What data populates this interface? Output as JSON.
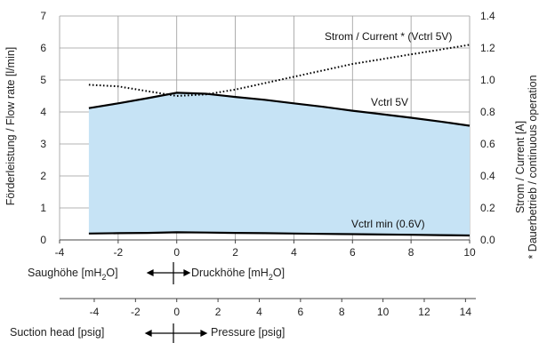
{
  "chart_data": {
    "type": "area",
    "x": [
      -3,
      -2,
      -1,
      0,
      1,
      2,
      3,
      4,
      5,
      6,
      7,
      8,
      9,
      10
    ],
    "xlim": [
      -4,
      10
    ],
    "x_ticks": [
      -4,
      -2,
      0,
      2,
      4,
      6,
      8,
      10
    ],
    "ylim": [
      0,
      7
    ],
    "y_ticks": [
      0,
      1,
      2,
      3,
      4,
      5,
      6,
      7
    ],
    "y2lim": [
      0,
      1.4
    ],
    "y2_ticks": [
      "0.0",
      "0.2",
      "0.4",
      "0.6",
      "0.8",
      "1.0",
      "1.2",
      "1.4"
    ],
    "ylabel": "Förderleistung / Flow rate [l/min]",
    "y2label_line1": "Strom / Current [A]",
    "y2label_line2": "* Dauerbetrieb / continuous operation",
    "grid": true,
    "series": [
      {
        "name": "Vctrl 5V",
        "axis": "left",
        "style": "solid",
        "fill_to": "Vctrl min (0.6V)",
        "fill_color": "#c6e3f5",
        "values": [
          4.12,
          4.27,
          4.43,
          4.6,
          4.57,
          4.47,
          4.38,
          4.27,
          4.16,
          4.04,
          3.93,
          3.82,
          3.7,
          3.57
        ]
      },
      {
        "name": "Vctrl min (0.6V)",
        "axis": "left",
        "style": "solid",
        "values": [
          0.2,
          0.21,
          0.22,
          0.24,
          0.23,
          0.22,
          0.21,
          0.2,
          0.19,
          0.18,
          0.17,
          0.16,
          0.15,
          0.14
        ]
      },
      {
        "name": "Strom / Current * (Vctrl 5V)",
        "axis": "right",
        "style": "dotted",
        "values": [
          0.97,
          0.96,
          0.93,
          0.9,
          0.91,
          0.94,
          0.98,
          1.02,
          1.06,
          1.1,
          1.13,
          1.16,
          1.19,
          1.22
        ]
      }
    ],
    "mH2O_scale": {
      "left_label": "Saughöhe [mH",
      "right_label": "Druckhöhe [mH",
      "sub": "2",
      "tail": "O]"
    },
    "psig_scale": {
      "ticks": [
        -4,
        -2,
        0,
        2,
        4,
        6,
        8,
        10,
        12,
        14
      ],
      "left_label": "Suction head [psig]",
      "right_label": "Pressure [psig]"
    }
  },
  "colors": {
    "fill": "#c6e3f5",
    "line": "#000000",
    "grid": "#9a9a9a",
    "axis": "#444444"
  }
}
